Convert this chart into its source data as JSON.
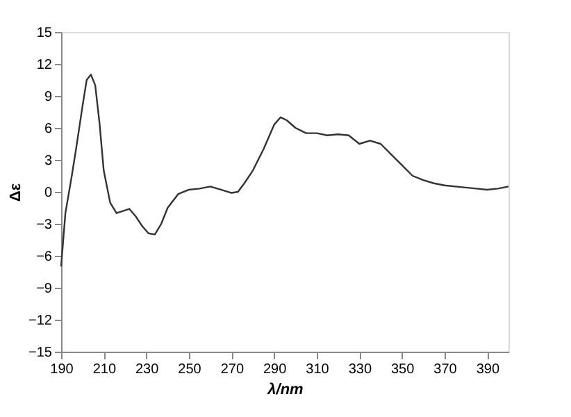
{
  "chart_data": {
    "type": "line",
    "xlabel": "λ/nm",
    "ylabel": "Δε",
    "x": [
      190,
      192,
      195,
      197,
      200,
      202,
      204,
      206,
      208,
      210,
      213,
      216,
      219,
      222,
      225,
      228,
      231,
      234,
      237,
      240,
      245,
      250,
      255,
      260,
      265,
      270,
      273,
      276,
      280,
      285,
      290,
      293,
      296,
      300,
      305,
      310,
      315,
      320,
      325,
      330,
      335,
      340,
      345,
      350,
      355,
      360,
      365,
      370,
      380,
      385,
      390,
      395,
      400
    ],
    "series": [
      {
        "color": "#333333",
        "values": [
          -7,
          -2,
          1.5,
          4,
          8,
          10.5,
          11,
          10,
          6.5,
          2,
          -1,
          -2,
          -1.8,
          -1.6,
          -2.3,
          -3.2,
          -3.9,
          -4,
          -3,
          -1.5,
          -0.2,
          0.2,
          0.3,
          0.5,
          0.2,
          -0.1,
          0,
          0.8,
          2,
          4,
          6.3,
          7,
          6.7,
          6,
          5.5,
          5.5,
          5.3,
          5.4,
          5.3,
          4.5,
          4.8,
          4.5,
          3.5,
          2.5,
          1.5,
          1.1,
          0.8,
          0.6,
          0.4,
          0.3,
          0.2,
          0.3,
          0.5
        ]
      }
    ],
    "xlim": [
      190,
      400
    ],
    "xticks": [
      190,
      210,
      230,
      250,
      270,
      290,
      310,
      330,
      350,
      370,
      390
    ],
    "ylim": [
      -15,
      15
    ],
    "yticks": [
      -15,
      -12,
      -9,
      -6,
      -3,
      0,
      3,
      6,
      9,
      12,
      15
    ],
    "grid": false,
    "marker": "none",
    "line_style": "solid",
    "legend": false
  }
}
